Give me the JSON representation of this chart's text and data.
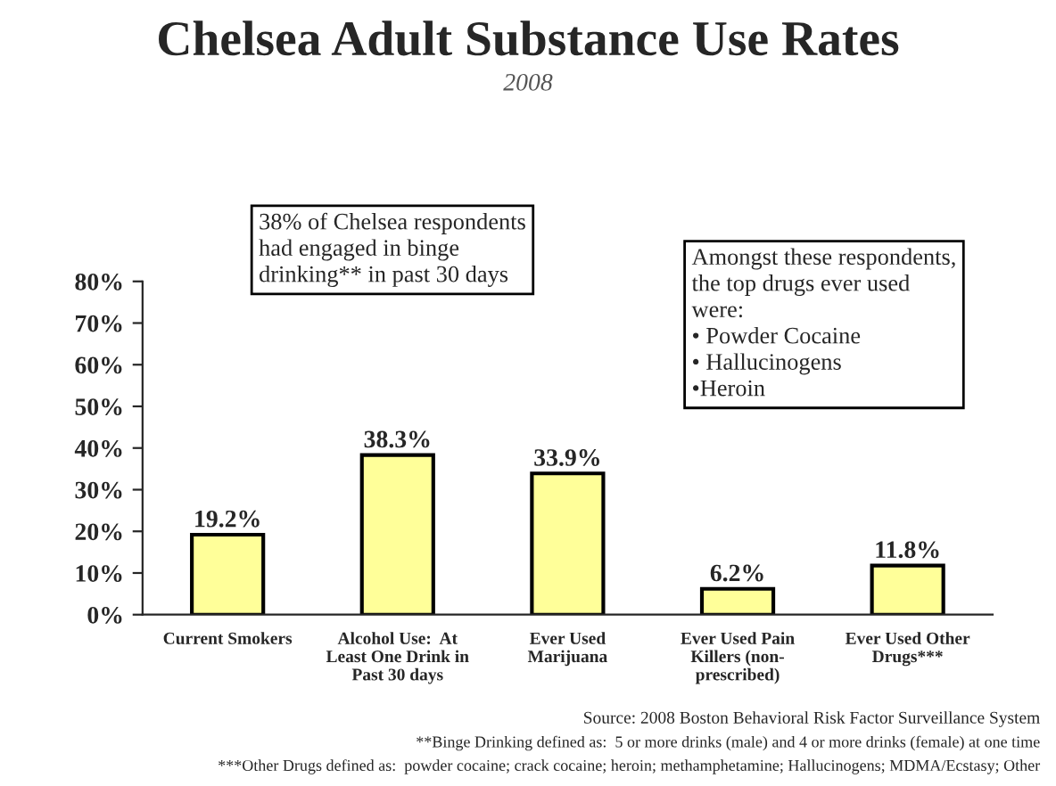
{
  "chart_data": {
    "type": "bar",
    "title": "Chelsea Adult Substance Use Rates",
    "subtitle": "2008",
    "categories": [
      "Current Smokers",
      "Alcohol Use:  At\nLeast One Drink in\nPast 30 days",
      "Ever Used\nMarijuana",
      "Ever Used Pain\nKillers (non-\nprescribed)",
      "Ever Used Other\nDrugs***"
    ],
    "values": [
      19.2,
      38.3,
      33.9,
      6.2,
      11.8
    ],
    "value_labels": [
      "19.2%",
      "38.3%",
      "33.9%",
      "6.2%",
      "11.8%"
    ],
    "color": "#ffff99",
    "ylim": [
      0,
      80
    ],
    "yticks": [
      {
        "value": 0,
        "label": "0%"
      },
      {
        "value": 10,
        "label": "10%"
      },
      {
        "value": 20,
        "label": "20%"
      },
      {
        "value": 30,
        "label": "30%"
      },
      {
        "value": 40,
        "label": "40%"
      },
      {
        "value": 50,
        "label": "50%"
      },
      {
        "value": 60,
        "label": "60%"
      },
      {
        "value": 70,
        "label": "70%"
      },
      {
        "value": 80,
        "label": "80%"
      }
    ],
    "grid": false,
    "annotations": [
      "38% of Chelsea respondents\nhad engaged in binge\ndrinking** in past 30 days",
      "Amongst these respondents,\nthe top drugs ever used\nwere:\n• Powder Cocaine\n• Hallucinogens\n•Heroin",
      "Source: 2008 Boston Behavioral Risk Factor Surveillance System",
      "**Binge Drinking defined as:  5 or more drinks (male) and 4 or more drinks (female) at one time",
      "***Other Drugs defined as:  powder cocaine; crack cocaine; heroin; methamphetamine; Hallucinogens; MDMA/Ecstasy; Other"
    ]
  }
}
